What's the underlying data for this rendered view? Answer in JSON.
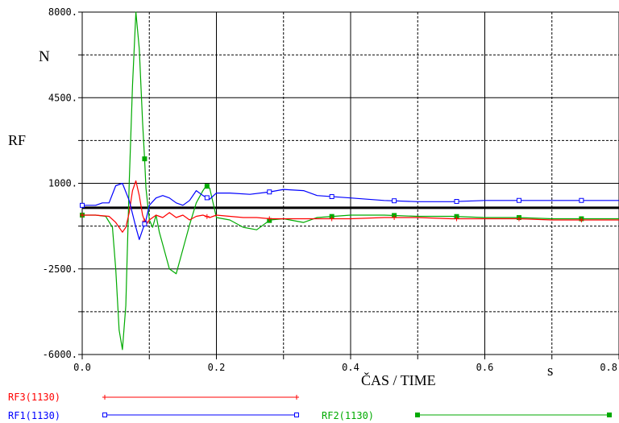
{
  "chart_data": {
    "type": "line",
    "title": "",
    "ylabel": "RF",
    "yunit": "N",
    "xlabel": "ČAS / TIME",
    "xunit": "s",
    "xlim": [
      0.0,
      0.8
    ],
    "ylim": [
      -6000,
      8000
    ],
    "x_ticks": [
      0.0,
      0.2,
      0.4,
      0.6,
      0.8
    ],
    "x_tick_labels": [
      "0.0",
      "0.2",
      "0.4",
      "0.6",
      "0.8"
    ],
    "y_ticks": [
      -6000,
      -2500,
      1000,
      4500,
      8000
    ],
    "y_tick_labels": [
      "-6000.",
      "-2500.",
      "1000.",
      "4500.",
      "8000."
    ],
    "grid": true,
    "legend_position": "bottom",
    "series": [
      {
        "name": "RF3(1130)",
        "color": "#ff0000",
        "marker": "plus",
        "x": [
          0.0,
          0.02,
          0.04,
          0.05,
          0.06,
          0.065,
          0.07,
          0.075,
          0.08,
          0.085,
          0.09,
          0.095,
          0.1,
          0.11,
          0.12,
          0.13,
          0.14,
          0.15,
          0.16,
          0.17,
          0.18,
          0.19,
          0.2,
          0.22,
          0.24,
          0.26,
          0.28,
          0.3,
          0.35,
          0.4,
          0.45,
          0.5,
          0.55,
          0.6,
          0.65,
          0.7,
          0.75,
          0.8
        ],
        "y": [
          -300,
          -300,
          -350,
          -600,
          -1000,
          -800,
          -200,
          700,
          1100,
          500,
          -300,
          -700,
          -500,
          -300,
          -400,
          -200,
          -400,
          -300,
          -500,
          -350,
          -300,
          -400,
          -300,
          -350,
          -400,
          -400,
          -450,
          -450,
          -450,
          -450,
          -400,
          -400,
          -450,
          -450,
          -450,
          -500,
          -500,
          -500
        ],
        "markers_x": [
          0.0,
          0.093,
          0.186,
          0.279,
          0.372,
          0.465,
          0.558,
          0.651,
          0.744
        ]
      },
      {
        "name": "RF1(1130)",
        "color": "#0000ff",
        "marker": "square",
        "x": [
          0.0,
          0.02,
          0.03,
          0.04,
          0.05,
          0.06,
          0.07,
          0.08,
          0.085,
          0.09,
          0.095,
          0.1,
          0.11,
          0.12,
          0.13,
          0.14,
          0.15,
          0.16,
          0.17,
          0.18,
          0.19,
          0.2,
          0.22,
          0.25,
          0.28,
          0.3,
          0.33,
          0.35,
          0.4,
          0.45,
          0.5,
          0.55,
          0.6,
          0.65,
          0.7,
          0.75,
          0.8
        ],
        "y": [
          100,
          100,
          200,
          200,
          900,
          1000,
          300,
          -800,
          -1300,
          -900,
          -500,
          100,
          400,
          500,
          400,
          200,
          100,
          300,
          700,
          500,
          350,
          600,
          600,
          550,
          650,
          750,
          700,
          500,
          400,
          300,
          250,
          250,
          300,
          300,
          300,
          300,
          300
        ],
        "markers_x": [
          0.0,
          0.093,
          0.186,
          0.279,
          0.372,
          0.465,
          0.558,
          0.651,
          0.744
        ]
      },
      {
        "name": "RF2(1130)",
        "color": "#00aa00",
        "marker": "filled-square",
        "x": [
          0.0,
          0.02,
          0.035,
          0.045,
          0.05,
          0.055,
          0.06,
          0.065,
          0.07,
          0.075,
          0.08,
          0.085,
          0.09,
          0.093,
          0.095,
          0.1,
          0.105,
          0.11,
          0.115,
          0.12,
          0.13,
          0.14,
          0.15,
          0.16,
          0.17,
          0.18,
          0.185,
          0.19,
          0.2,
          0.22,
          0.24,
          0.26,
          0.28,
          0.3,
          0.33,
          0.35,
          0.4,
          0.45,
          0.5,
          0.55,
          0.6,
          0.65,
          0.7,
          0.75,
          0.8
        ],
        "y": [
          -300,
          -300,
          -350,
          -800,
          -2500,
          -5000,
          -5800,
          -4000,
          1000,
          5000,
          8000,
          6500,
          3500,
          2000,
          800,
          -500,
          -800,
          -300,
          -1000,
          -1500,
          -2500,
          -2700,
          -1700,
          -700,
          200,
          700,
          900,
          800,
          -400,
          -500,
          -800,
          -900,
          -500,
          -450,
          -600,
          -400,
          -300,
          -300,
          -350,
          -350,
          -400,
          -400,
          -450,
          -450,
          -450
        ],
        "markers_x": [
          0.0,
          0.093,
          0.186,
          0.279,
          0.372,
          0.465,
          0.558,
          0.651,
          0.744
        ]
      }
    ]
  }
}
